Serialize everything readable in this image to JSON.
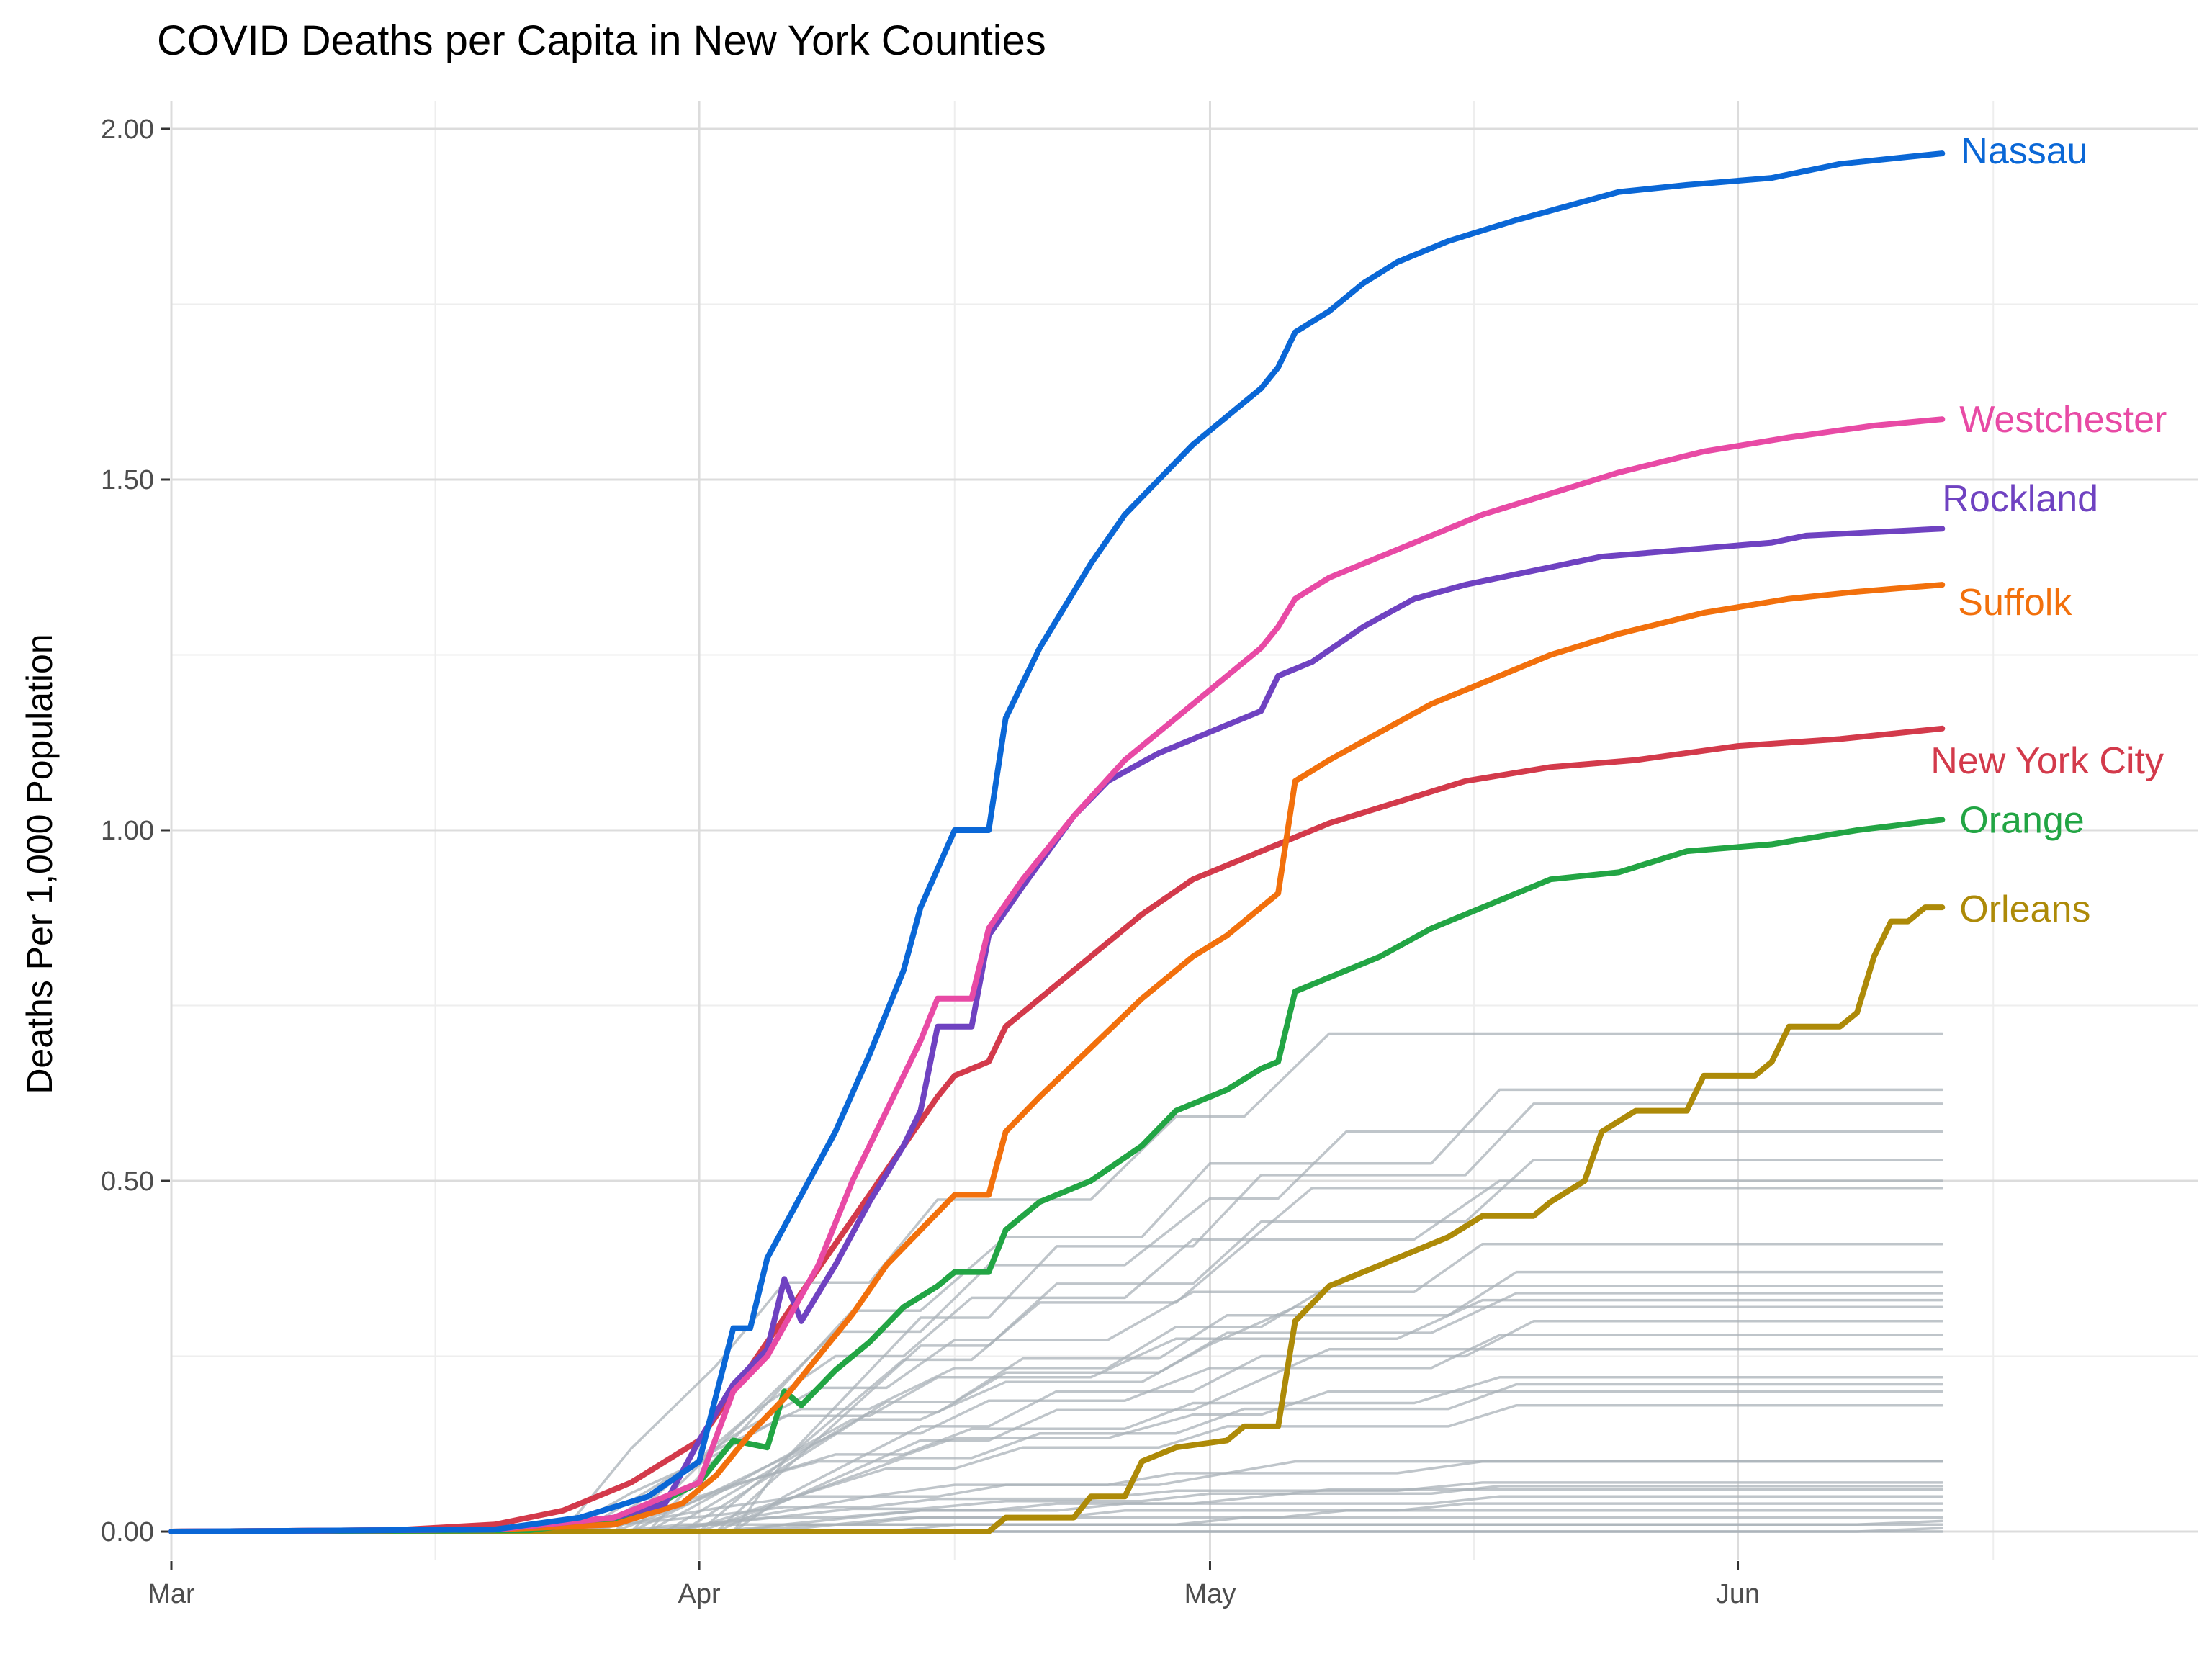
{
  "chart_data": {
    "type": "line",
    "title": "COVID Deaths per Capita in New York Counties",
    "xlabel": "",
    "ylabel": "Deaths Per 1,000 Population",
    "x_axis": {
      "type": "date",
      "range": [
        "2020-03-01",
        "2020-06-28"
      ],
      "ticks": [
        "2020-03-01",
        "2020-04-01",
        "2020-05-01",
        "2020-06-01"
      ],
      "tick_labels": [
        "Mar",
        "Apr",
        "May",
        "Jun"
      ]
    },
    "ylim": [
      -0.04,
      2.04
    ],
    "y_ticks": [
      0.0,
      0.5,
      1.0,
      1.5,
      2.0
    ],
    "y_tick_labels": [
      "0.00",
      "0.50",
      "1.00",
      "1.50",
      "2.00"
    ],
    "grid": true,
    "legend": "none (direct labels at line ends)",
    "colors": {
      "Nassau": "#0a67d6",
      "Westchester": "#e84aa5",
      "Rockland": "#6f42c1",
      "Suffolk": "#f2700c",
      "New York City": "#d33a4b",
      "Orange": "#22a544",
      "Orleans": "#ad8a08",
      "other_counties": "#aab1b8"
    },
    "series": [
      {
        "name": "Nassau",
        "points": [
          [
            "2020-03-01",
            0
          ],
          [
            "2020-03-20",
            0.003
          ],
          [
            "2020-03-25",
            0.02
          ],
          [
            "2020-03-29",
            0.05
          ],
          [
            "2020-04-01",
            0.1
          ],
          [
            "2020-04-03",
            0.29
          ],
          [
            "2020-04-04",
            0.29
          ],
          [
            "2020-04-05",
            0.39
          ],
          [
            "2020-04-07",
            0.48
          ],
          [
            "2020-04-09",
            0.57
          ],
          [
            "2020-04-11",
            0.68
          ],
          [
            "2020-04-13",
            0.8
          ],
          [
            "2020-04-14",
            0.89
          ],
          [
            "2020-04-16",
            1.0
          ],
          [
            "2020-04-18",
            1.0
          ],
          [
            "2020-04-19",
            1.16
          ],
          [
            "2020-04-21",
            1.26
          ],
          [
            "2020-04-24",
            1.38
          ],
          [
            "2020-04-26",
            1.45
          ],
          [
            "2020-04-28",
            1.5
          ],
          [
            "2020-04-30",
            1.55
          ],
          [
            "2020-05-02",
            1.59
          ],
          [
            "2020-05-04",
            1.63
          ],
          [
            "2020-05-05",
            1.66
          ],
          [
            "2020-05-06",
            1.71
          ],
          [
            "2020-05-08",
            1.74
          ],
          [
            "2020-05-10",
            1.78
          ],
          [
            "2020-05-12",
            1.81
          ],
          [
            "2020-05-15",
            1.84
          ],
          [
            "2020-05-19",
            1.87
          ],
          [
            "2020-05-22",
            1.89
          ],
          [
            "2020-05-25",
            1.91
          ],
          [
            "2020-05-29",
            1.92
          ],
          [
            "2020-06-03",
            1.93
          ],
          [
            "2020-06-07",
            1.95
          ],
          [
            "2020-06-11",
            1.96
          ],
          [
            "2020-06-13",
            1.965
          ]
        ]
      },
      {
        "name": "Westchester",
        "points": [
          [
            "2020-03-01",
            0
          ],
          [
            "2020-03-20",
            0.003
          ],
          [
            "2020-03-27",
            0.02
          ],
          [
            "2020-04-01",
            0.07
          ],
          [
            "2020-04-03",
            0.2
          ],
          [
            "2020-04-05",
            0.25
          ],
          [
            "2020-04-08",
            0.38
          ],
          [
            "2020-04-10",
            0.5
          ],
          [
            "2020-04-12",
            0.6
          ],
          [
            "2020-04-14",
            0.7
          ],
          [
            "2020-04-15",
            0.76
          ],
          [
            "2020-04-17",
            0.76
          ],
          [
            "2020-04-18",
            0.86
          ],
          [
            "2020-04-20",
            0.93
          ],
          [
            "2020-04-23",
            1.02
          ],
          [
            "2020-04-26",
            1.1
          ],
          [
            "2020-04-29",
            1.16
          ],
          [
            "2020-05-01",
            1.2
          ],
          [
            "2020-05-04",
            1.26
          ],
          [
            "2020-05-05",
            1.29
          ],
          [
            "2020-05-06",
            1.33
          ],
          [
            "2020-05-08",
            1.36
          ],
          [
            "2020-05-11",
            1.39
          ],
          [
            "2020-05-14",
            1.42
          ],
          [
            "2020-05-17",
            1.45
          ],
          [
            "2020-05-21",
            1.48
          ],
          [
            "2020-05-25",
            1.51
          ],
          [
            "2020-05-30",
            1.54
          ],
          [
            "2020-06-04",
            1.56
          ],
          [
            "2020-06-09",
            1.577
          ],
          [
            "2020-06-13",
            1.586
          ]
        ]
      },
      {
        "name": "Rockland",
        "points": [
          [
            "2020-03-01",
            0
          ],
          [
            "2020-03-20",
            0.003
          ],
          [
            "2020-03-27",
            0.02
          ],
          [
            "2020-03-30",
            0.04
          ],
          [
            "2020-04-01",
            0.13
          ],
          [
            "2020-04-03",
            0.21
          ],
          [
            "2020-04-05",
            0.26
          ],
          [
            "2020-04-06",
            0.36
          ],
          [
            "2020-04-07",
            0.3
          ],
          [
            "2020-04-09",
            0.38
          ],
          [
            "2020-04-11",
            0.47
          ],
          [
            "2020-04-13",
            0.55
          ],
          [
            "2020-04-14",
            0.6
          ],
          [
            "2020-04-15",
            0.72
          ],
          [
            "2020-04-17",
            0.72
          ],
          [
            "2020-04-18",
            0.85
          ],
          [
            "2020-04-20",
            0.92
          ],
          [
            "2020-04-23",
            1.02
          ],
          [
            "2020-04-25",
            1.07
          ],
          [
            "2020-04-28",
            1.11
          ],
          [
            "2020-05-01",
            1.14
          ],
          [
            "2020-05-04",
            1.17
          ],
          [
            "2020-05-05",
            1.22
          ],
          [
            "2020-05-07",
            1.24
          ],
          [
            "2020-05-10",
            1.29
          ],
          [
            "2020-05-13",
            1.33
          ],
          [
            "2020-05-16",
            1.35
          ],
          [
            "2020-05-20",
            1.37
          ],
          [
            "2020-05-24",
            1.39
          ],
          [
            "2020-05-29",
            1.4
          ],
          [
            "2020-06-03",
            1.41
          ],
          [
            "2020-06-05",
            1.42
          ],
          [
            "2020-06-13",
            1.43
          ]
        ]
      },
      {
        "name": "Suffolk",
        "points": [
          [
            "2020-03-01",
            0
          ],
          [
            "2020-03-20",
            0.003
          ],
          [
            "2020-03-27",
            0.01
          ],
          [
            "2020-03-31",
            0.04
          ],
          [
            "2020-04-02",
            0.08
          ],
          [
            "2020-04-04",
            0.14
          ],
          [
            "2020-04-06",
            0.19
          ],
          [
            "2020-04-08",
            0.25
          ],
          [
            "2020-04-10",
            0.31
          ],
          [
            "2020-04-12",
            0.38
          ],
          [
            "2020-04-14",
            0.43
          ],
          [
            "2020-04-16",
            0.48
          ],
          [
            "2020-04-18",
            0.48
          ],
          [
            "2020-04-19",
            0.57
          ],
          [
            "2020-04-21",
            0.62
          ],
          [
            "2020-04-24",
            0.69
          ],
          [
            "2020-04-27",
            0.76
          ],
          [
            "2020-04-30",
            0.82
          ],
          [
            "2020-05-02",
            0.85
          ],
          [
            "2020-05-04",
            0.89
          ],
          [
            "2020-05-05",
            0.91
          ],
          [
            "2020-05-06",
            1.07
          ],
          [
            "2020-05-08",
            1.1
          ],
          [
            "2020-05-11",
            1.14
          ],
          [
            "2020-05-14",
            1.18
          ],
          [
            "2020-05-17",
            1.21
          ],
          [
            "2020-05-21",
            1.25
          ],
          [
            "2020-05-25",
            1.28
          ],
          [
            "2020-05-30",
            1.31
          ],
          [
            "2020-06-04",
            1.33
          ],
          [
            "2020-06-08",
            1.34
          ],
          [
            "2020-06-13",
            1.35
          ]
        ]
      },
      {
        "name": "New York City",
        "points": [
          [
            "2020-03-01",
            0
          ],
          [
            "2020-03-14",
            0.002
          ],
          [
            "2020-03-20",
            0.01
          ],
          [
            "2020-03-24",
            0.03
          ],
          [
            "2020-03-28",
            0.07
          ],
          [
            "2020-04-01",
            0.13
          ],
          [
            "2020-04-03",
            0.2
          ],
          [
            "2020-04-05",
            0.27
          ],
          [
            "2020-04-07",
            0.34
          ],
          [
            "2020-04-09",
            0.41
          ],
          [
            "2020-04-11",
            0.48
          ],
          [
            "2020-04-13",
            0.55
          ],
          [
            "2020-04-15",
            0.62
          ],
          [
            "2020-04-16",
            0.65
          ],
          [
            "2020-04-18",
            0.67
          ],
          [
            "2020-04-19",
            0.72
          ],
          [
            "2020-04-21",
            0.76
          ],
          [
            "2020-04-24",
            0.82
          ],
          [
            "2020-04-27",
            0.88
          ],
          [
            "2020-04-30",
            0.93
          ],
          [
            "2020-05-02",
            0.95
          ],
          [
            "2020-05-05",
            0.98
          ],
          [
            "2020-05-08",
            1.01
          ],
          [
            "2020-05-12",
            1.04
          ],
          [
            "2020-05-16",
            1.07
          ],
          [
            "2020-05-21",
            1.09
          ],
          [
            "2020-05-26",
            1.1
          ],
          [
            "2020-06-01",
            1.12
          ],
          [
            "2020-06-07",
            1.13
          ],
          [
            "2020-06-13",
            1.145
          ]
        ]
      },
      {
        "name": "Orange",
        "points": [
          [
            "2020-03-01",
            0
          ],
          [
            "2020-03-22",
            0.002
          ],
          [
            "2020-03-28",
            0.02
          ],
          [
            "2020-04-01",
            0.07
          ],
          [
            "2020-04-03",
            0.13
          ],
          [
            "2020-04-05",
            0.12
          ],
          [
            "2020-04-06",
            0.2
          ],
          [
            "2020-04-07",
            0.18
          ],
          [
            "2020-04-09",
            0.23
          ],
          [
            "2020-04-11",
            0.27
          ],
          [
            "2020-04-13",
            0.32
          ],
          [
            "2020-04-15",
            0.35
          ],
          [
            "2020-04-16",
            0.37
          ],
          [
            "2020-04-18",
            0.37
          ],
          [
            "2020-04-19",
            0.43
          ],
          [
            "2020-04-21",
            0.47
          ],
          [
            "2020-04-24",
            0.5
          ],
          [
            "2020-04-27",
            0.55
          ],
          [
            "2020-04-29",
            0.6
          ],
          [
            "2020-05-02",
            0.63
          ],
          [
            "2020-05-04",
            0.66
          ],
          [
            "2020-05-05",
            0.67
          ],
          [
            "2020-05-06",
            0.77
          ],
          [
            "2020-05-08",
            0.79
          ],
          [
            "2020-05-11",
            0.82
          ],
          [
            "2020-05-14",
            0.86
          ],
          [
            "2020-05-18",
            0.9
          ],
          [
            "2020-05-21",
            0.93
          ],
          [
            "2020-05-25",
            0.94
          ],
          [
            "2020-05-29",
            0.97
          ],
          [
            "2020-06-03",
            0.98
          ],
          [
            "2020-06-08",
            1.0
          ],
          [
            "2020-06-13",
            1.015
          ]
        ]
      },
      {
        "name": "Orleans",
        "points": [
          [
            "2020-03-01",
            0
          ],
          [
            "2020-04-18",
            0
          ],
          [
            "2020-04-19",
            0.02
          ],
          [
            "2020-04-23",
            0.02
          ],
          [
            "2020-04-24",
            0.05
          ],
          [
            "2020-04-26",
            0.05
          ],
          [
            "2020-04-27",
            0.1
          ],
          [
            "2020-04-29",
            0.12
          ],
          [
            "2020-05-02",
            0.13
          ],
          [
            "2020-05-03",
            0.15
          ],
          [
            "2020-05-05",
            0.15
          ],
          [
            "2020-05-06",
            0.3
          ],
          [
            "2020-05-08",
            0.35
          ],
          [
            "2020-05-10",
            0.37
          ],
          [
            "2020-05-13",
            0.4
          ],
          [
            "2020-05-15",
            0.42
          ],
          [
            "2020-05-17",
            0.45
          ],
          [
            "2020-05-20",
            0.45
          ],
          [
            "2020-05-21",
            0.47
          ],
          [
            "2020-05-23",
            0.5
          ],
          [
            "2020-05-24",
            0.57
          ],
          [
            "2020-05-26",
            0.6
          ],
          [
            "2020-05-29",
            0.6
          ],
          [
            "2020-05-30",
            0.65
          ],
          [
            "2020-06-02",
            0.65
          ],
          [
            "2020-06-03",
            0.67
          ],
          [
            "2020-06-04",
            0.72
          ],
          [
            "2020-06-07",
            0.72
          ],
          [
            "2020-06-08",
            0.74
          ],
          [
            "2020-06-09",
            0.82
          ],
          [
            "2020-06-10",
            0.87
          ],
          [
            "2020-06-11",
            0.87
          ],
          [
            "2020-06-12",
            0.89
          ],
          [
            "2020-06-13",
            0.89
          ]
        ]
      }
    ],
    "other_counties_final_values": [
      0.71,
      0.63,
      0.61,
      0.57,
      0.53,
      0.5,
      0.49,
      0.41,
      0.37,
      0.35,
      0.34,
      0.33,
      0.32,
      0.3,
      0.28,
      0.26,
      0.22,
      0.21,
      0.2,
      0.18,
      0.1,
      0.1,
      0.07,
      0.065,
      0.06,
      0.05,
      0.04,
      0.03,
      0.02,
      0.015,
      0.01,
      0.005,
      0.0
    ],
    "end_labels": [
      "Nassau",
      "Westchester",
      "Rockland",
      "Suffolk",
      "New York City",
      "Orange",
      "Orleans"
    ]
  }
}
